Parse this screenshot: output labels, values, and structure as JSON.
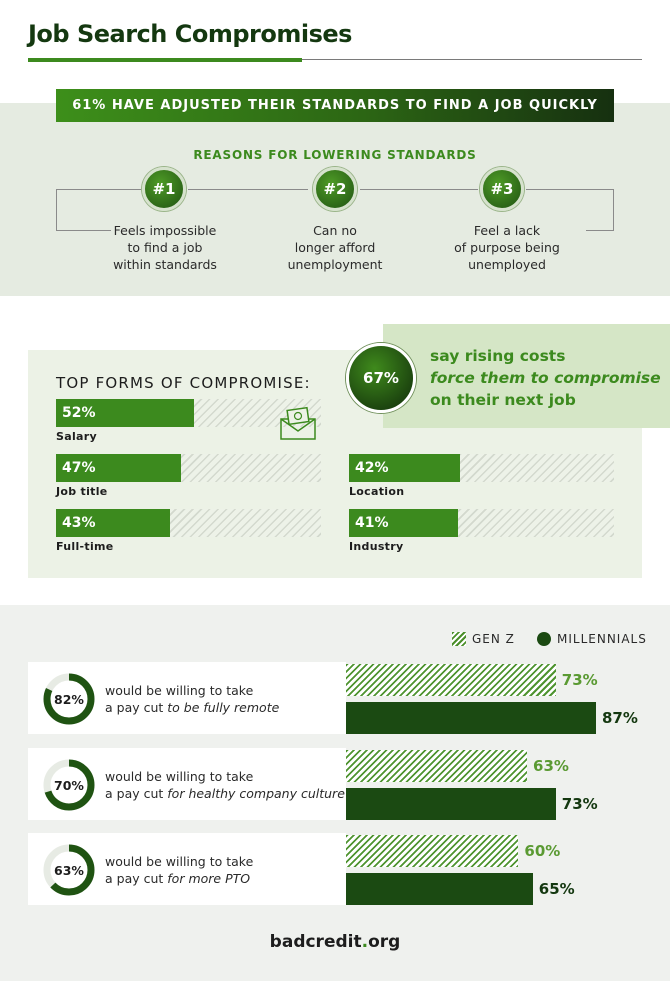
{
  "header": {
    "title": "Job Search Compromises"
  },
  "banner": {
    "text": "61% HAVE ADJUSTED THEIR STANDARDS TO FIND A JOB QUICKLY"
  },
  "reasons": {
    "title": "REASONS FOR LOWERING STANDARDS",
    "items": [
      {
        "badge": "#1",
        "lines": [
          "Feels impossible",
          "to find a job",
          "within standards"
        ]
      },
      {
        "badge": "#2",
        "lines": [
          "Can no",
          "longer afford",
          "unemployment"
        ]
      },
      {
        "badge": "#3",
        "lines": [
          "Feel a lack",
          "of purpose being",
          "unemployed"
        ]
      }
    ]
  },
  "rising_costs": {
    "value": "67%",
    "line1": "say rising costs",
    "line2": "force them to compromise",
    "line3": "on their next job"
  },
  "colors": {
    "accent_green": "#3c8a1e",
    "dark_green": "#1b4a12",
    "light_green_bg": "#e5ebe1"
  },
  "chart_data": [
    {
      "type": "bar",
      "title": "TOP FORMS OF COMPROMISE:",
      "categories": [
        "Salary",
        "Job title",
        "Full-time",
        "Location",
        "Industry"
      ],
      "values": [
        52,
        47,
        43,
        42,
        41
      ],
      "labels": [
        "52%",
        "47%",
        "43%",
        "42%",
        "41%"
      ],
      "ylim": [
        0,
        100
      ]
    },
    {
      "type": "bar",
      "categories": [
        "to be fully remote",
        "for healthy company culture",
        "for more PTO"
      ],
      "overall": [
        82,
        70,
        63
      ],
      "overall_labels": [
        "82%",
        "70%",
        "63%"
      ],
      "series": [
        {
          "name": "GEN Z",
          "values": [
            73,
            63,
            60
          ],
          "labels": [
            "73%",
            "63%",
            "60%"
          ]
        },
        {
          "name": "MILLENNIALS",
          "values": [
            87,
            73,
            65
          ],
          "labels": [
            "87%",
            "73%",
            "65%"
          ]
        }
      ],
      "ylim": [
        0,
        100
      ]
    }
  ],
  "payscut": {
    "prefix_line1": "would be willing to take",
    "prefix_line2": "a pay cut",
    "legend_genz": "GEN Z",
    "legend_millennials": "MILLENNIALS"
  },
  "footer": {
    "brand_main": "badcredit",
    "brand_dot": ".",
    "brand_tld": "org"
  },
  "icons": {
    "envelope": "money-envelope-icon"
  }
}
